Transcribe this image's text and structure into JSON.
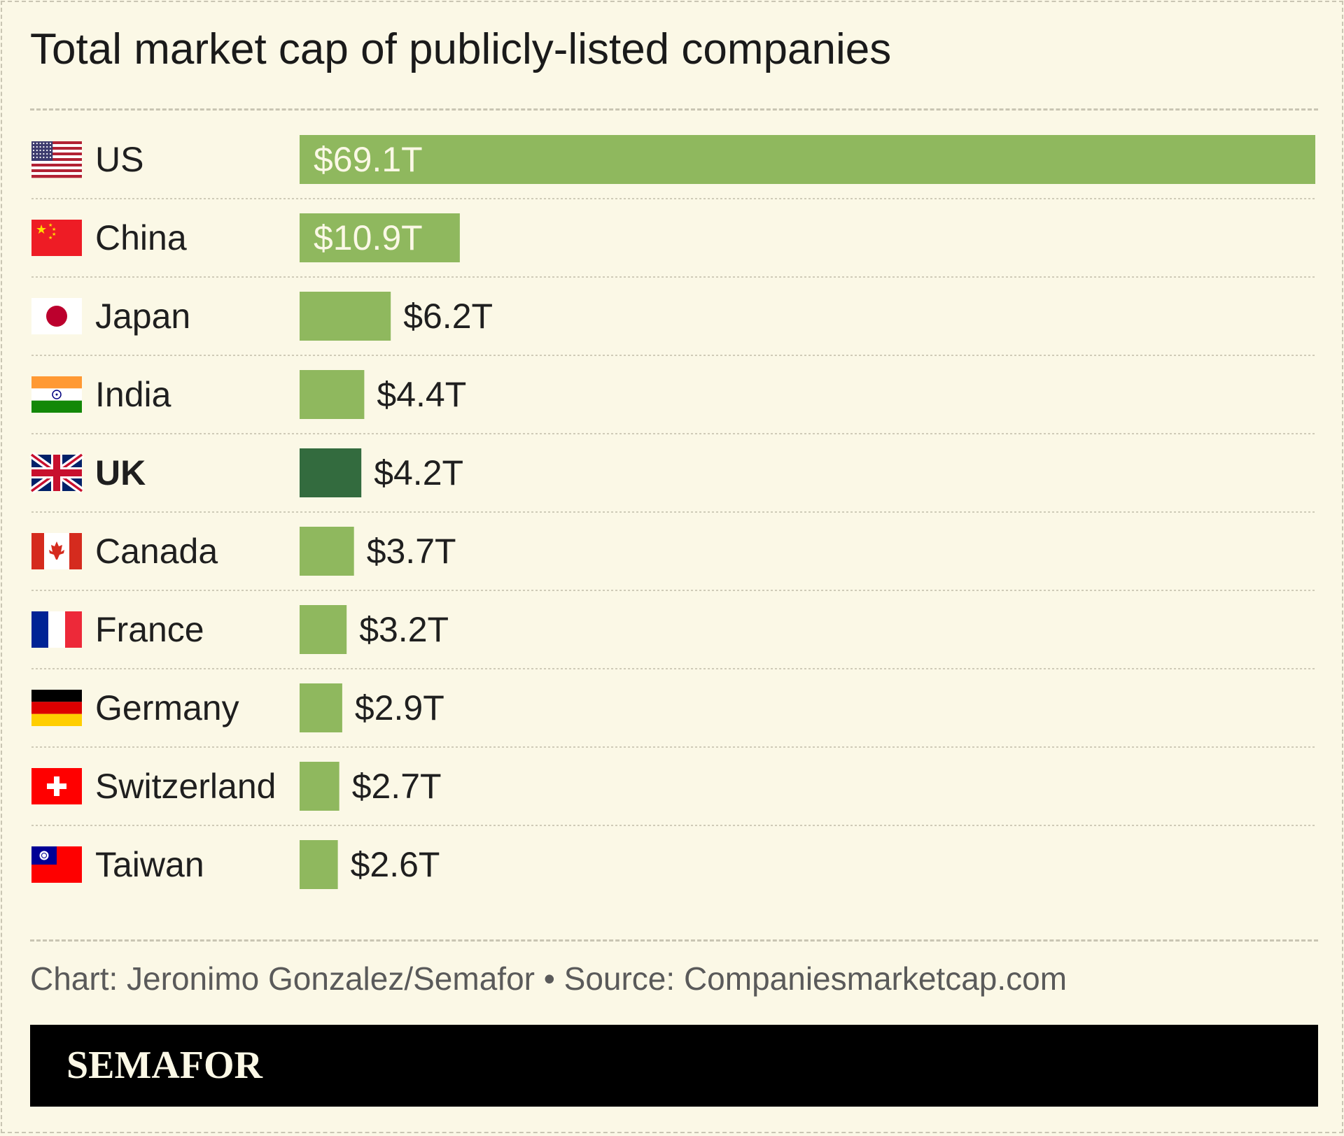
{
  "title": "Total market cap of publicly-listed companies",
  "footer": {
    "credit": "Chart: Jeronimo Gonzalez/Semafor • Source: Companiesmarketcap.com",
    "brand": "SEMAFOR"
  },
  "colors": {
    "background": "#fbf8e6",
    "bar": "#8fb85e",
    "bar_highlight": "#336b3e",
    "text": "#1f1f1f",
    "label_inside": "#fbf8e6"
  },
  "chart_data": {
    "type": "bar",
    "orientation": "horizontal",
    "title": "Total market cap of publicly-listed companies",
    "unit": "T",
    "categories": [
      "US",
      "China",
      "Japan",
      "India",
      "UK",
      "Canada",
      "France",
      "Germany",
      "Switzerland",
      "Taiwan"
    ],
    "values": [
      69.1,
      10.9,
      6.2,
      4.4,
      4.2,
      3.7,
      3.2,
      2.9,
      2.7,
      2.6
    ],
    "labels": [
      "$69.1T",
      "$10.9T",
      "$6.2T",
      "$4.4T",
      "$4.2T",
      "$3.7T",
      "$3.2T",
      "$2.9T",
      "$2.7T",
      "$2.6T"
    ],
    "flag_icons": [
      "us-flag-icon",
      "china-flag-icon",
      "japan-flag-icon",
      "india-flag-icon",
      "uk-flag-icon",
      "canada-flag-icon",
      "france-flag-icon",
      "germany-flag-icon",
      "switzerland-flag-icon",
      "taiwan-flag-icon"
    ],
    "highlight": "UK",
    "xlim": [
      0,
      69.1
    ],
    "grid": false,
    "legend": "none"
  }
}
